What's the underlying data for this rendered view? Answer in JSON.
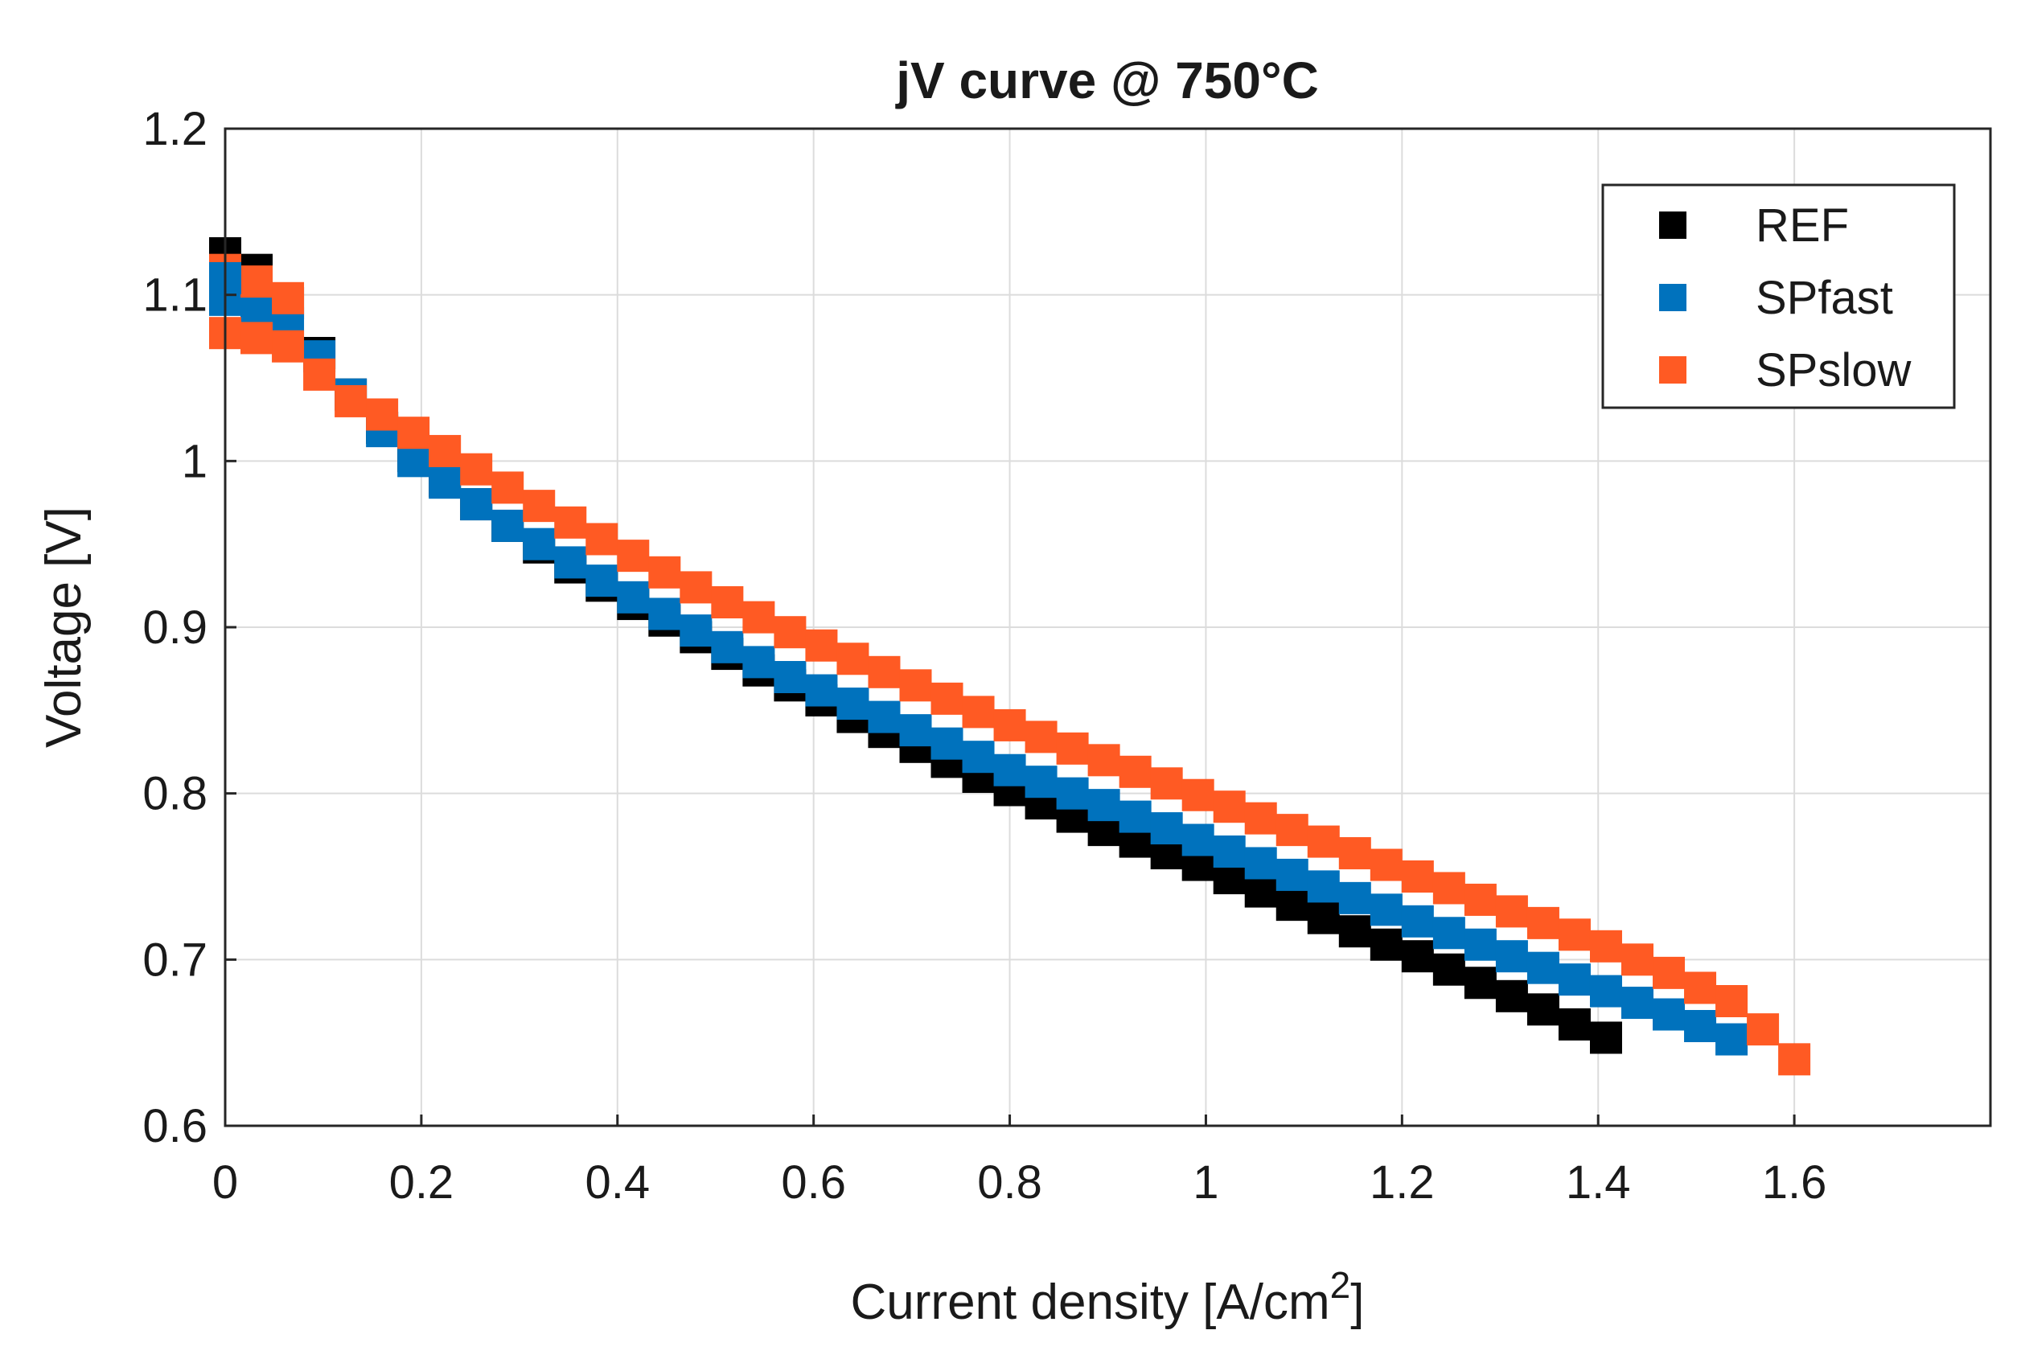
{
  "chart_data": {
    "type": "scatter",
    "title": "jV curve @ 750°C",
    "xlabel": "Current density [A/cm",
    "xlabel_superscript": "2",
    "xlabel_suffix": "]",
    "ylabel": "Voltage [V]",
    "xlim": [
      0,
      1.8
    ],
    "ylim": [
      0.6,
      1.2
    ],
    "xticks": [
      0,
      0.2,
      0.4,
      0.6,
      0.8,
      1.0,
      1.2,
      1.4,
      1.6
    ],
    "xtick_labels": [
      "0",
      "0.2",
      "0.4",
      "0.6",
      "0.8",
      "1",
      "1.2",
      "1.4",
      "1.6"
    ],
    "yticks": [
      0.6,
      0.7,
      0.8,
      0.9,
      1.0,
      1.1,
      1.2
    ],
    "ytick_labels": [
      "0.6",
      "0.7",
      "0.8",
      "0.9",
      "1",
      "1.1",
      "1.2"
    ],
    "grid": true,
    "legend_position": "top-right",
    "series": [
      {
        "name": "REF",
        "color": "#000000",
        "x": [
          0,
          0.032,
          0.064,
          0.096,
          0.128,
          0.16,
          0.192,
          0.224,
          0.256,
          0.288,
          0.32,
          0.352,
          0.384,
          0.416,
          0.448,
          0.48,
          0.512,
          0.544,
          0.576,
          0.608,
          0.64,
          0.672,
          0.704,
          0.736,
          0.768,
          0.8,
          0.832,
          0.864,
          0.896,
          0.928,
          0.96,
          0.992,
          1.024,
          1.056,
          1.088,
          1.12,
          1.152,
          1.184,
          1.216,
          1.248,
          1.28,
          1.312,
          1.344,
          1.376,
          1.408
        ],
        "y": [
          1.125,
          1.115,
          1.095,
          1.065,
          1.04,
          1.02,
          1.003,
          0.988,
          0.974,
          0.961,
          0.948,
          0.936,
          0.925,
          0.914,
          0.904,
          0.894,
          0.884,
          0.874,
          0.865,
          0.856,
          0.846,
          0.837,
          0.828,
          0.819,
          0.81,
          0.802,
          0.794,
          0.786,
          0.778,
          0.771,
          0.764,
          0.757,
          0.749,
          0.741,
          0.733,
          0.725,
          0.717,
          0.709,
          0.702,
          0.694,
          0.686,
          0.678,
          0.67,
          0.661,
          0.653
        ]
      },
      {
        "name": "SPfast",
        "color": "#0072BD",
        "x": [
          0,
          0.032,
          0.064,
          0.096,
          0.128,
          0.16,
          0.192,
          0.224,
          0.256,
          0.288,
          0.32,
          0.352,
          0.384,
          0.416,
          0.448,
          0.48,
          0.512,
          0.544,
          0.576,
          0.608,
          0.64,
          0.672,
          0.704,
          0.736,
          0.768,
          0.8,
          0.832,
          0.864,
          0.896,
          0.928,
          0.96,
          0.992,
          1.024,
          1.056,
          1.088,
          1.12,
          1.152,
          1.184,
          1.216,
          1.248,
          1.28,
          1.312,
          1.344,
          1.376,
          1.408,
          1.44,
          1.472,
          1.504,
          1.536
        ],
        "y": [
          1.097,
          1.093,
          1.083,
          1.063,
          1.04,
          1.018,
          1.0,
          0.987,
          0.974,
          0.961,
          0.95,
          0.939,
          0.928,
          0.918,
          0.908,
          0.898,
          0.888,
          0.879,
          0.87,
          0.862,
          0.854,
          0.846,
          0.838,
          0.83,
          0.822,
          0.814,
          0.807,
          0.8,
          0.793,
          0.786,
          0.779,
          0.772,
          0.765,
          0.758,
          0.751,
          0.744,
          0.737,
          0.73,
          0.723,
          0.716,
          0.709,
          0.702,
          0.695,
          0.688,
          0.681,
          0.674,
          0.667,
          0.66,
          0.652
        ]
      },
      {
        "name": "SPslow",
        "color": "#FF5A23",
        "x": [
          0,
          0.032,
          0.064,
          0.096,
          0.128,
          0.16,
          0.192,
          0.224,
          0.256,
          0.288,
          0.32,
          0.352,
          0.384,
          0.416,
          0.448,
          0.48,
          0.512,
          0.544,
          0.576,
          0.608,
          0.64,
          0.672,
          0.704,
          0.736,
          0.768,
          0.8,
          0.832,
          0.864,
          0.896,
          0.928,
          0.96,
          0.992,
          1.024,
          1.056,
          1.088,
          1.12,
          1.152,
          1.184,
          1.216,
          1.248,
          1.28,
          1.312,
          1.344,
          1.376,
          1.408,
          1.44,
          1.472,
          1.504,
          1.536,
          1.568,
          1.6
        ],
        "y": [
          1.077,
          1.074,
          1.069,
          1.052,
          1.036,
          1.028,
          1.017,
          1.006,
          0.995,
          0.984,
          0.973,
          0.963,
          0.953,
          0.943,
          0.933,
          0.924,
          0.915,
          0.906,
          0.897,
          0.889,
          0.881,
          0.873,
          0.865,
          0.857,
          0.849,
          0.841,
          0.834,
          0.827,
          0.82,
          0.813,
          0.806,
          0.799,
          0.792,
          0.785,
          0.778,
          0.771,
          0.764,
          0.757,
          0.75,
          0.743,
          0.736,
          0.729,
          0.722,
          0.715,
          0.708,
          0.7,
          0.692,
          0.683,
          0.675,
          0.658,
          0.64
        ]
      }
    ],
    "extra_points": [
      {
        "series": "SPslow",
        "x": 0,
        "y": 1.115
      },
      {
        "series": "SPslow",
        "x": 0.032,
        "y": 1.108
      },
      {
        "series": "SPslow",
        "x": 0.064,
        "y": 1.098
      },
      {
        "series": "SPfast",
        "x": 0,
        "y": 1.11
      }
    ]
  }
}
